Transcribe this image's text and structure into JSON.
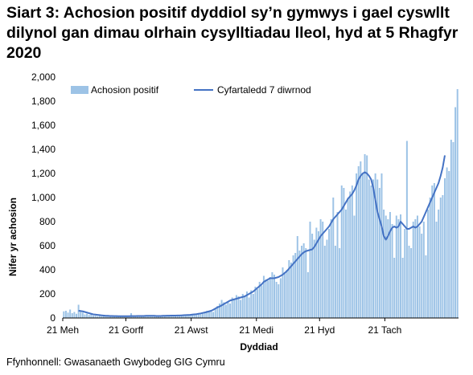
{
  "title": "Siart 3: Achosion positif dyddiol sy’n gymwys i gael cyswllt dilynol gan dimau olrhain cysylltiadau lleol, hyd at 5 Rhagfyr 2020",
  "source": "Ffynhonnell: Gwasanaeth Gwybodeg GIG Cymru",
  "colors": {
    "bars": "#9dc3e6",
    "line": "#4472c4"
  },
  "chart_data": {
    "type": "bar+line",
    "start_date": "2020-06-21",
    "end_date": "2020-12-05",
    "xlabel": "Dyddiad",
    "ylabel": "Nifer yr achosion",
    "ylim": [
      0,
      2000
    ],
    "yticks": [
      "0",
      "200",
      "400",
      "600",
      "800",
      "1,000",
      "1,200",
      "1,400",
      "1,600",
      "1,800",
      "2,000"
    ],
    "xticks": [
      {
        "date": "2020-06-21",
        "label": "21 Meh"
      },
      {
        "date": "2020-07-21",
        "label": "21 Gorff"
      },
      {
        "date": "2020-08-21",
        "label": "21 Awst"
      },
      {
        "date": "2020-09-21",
        "label": "21 Medi"
      },
      {
        "date": "2020-10-21",
        "label": "21 Hyd"
      },
      {
        "date": "2020-11-21",
        "label": "21 Tach"
      }
    ],
    "legend_position": "top-left",
    "series": [
      {
        "name": "Achosion positif",
        "type": "bar",
        "values": [
          55,
          60,
          45,
          70,
          40,
          50,
          35,
          110,
          60,
          45,
          30,
          35,
          25,
          30,
          20,
          20,
          15,
          25,
          15,
          20,
          15,
          18,
          15,
          20,
          12,
          14,
          10,
          12,
          16,
          10,
          15,
          15,
          40,
          15,
          20,
          18,
          15,
          20,
          15,
          20,
          12,
          15,
          12,
          18,
          14,
          20,
          15,
          18,
          20,
          22,
          18,
          20,
          22,
          15,
          20,
          22,
          18,
          25,
          20,
          28,
          30,
          28,
          35,
          28,
          40,
          38,
          45,
          42,
          60,
          50,
          55,
          50,
          80,
          100,
          120,
          150,
          130,
          110,
          140,
          120,
          170,
          160,
          190,
          180,
          150,
          200,
          180,
          220,
          170,
          230,
          200,
          260,
          240,
          300,
          270,
          350,
          320,
          310,
          340,
          380,
          360,
          300,
          280,
          330,
          420,
          380,
          400,
          480,
          460,
          520,
          540,
          680,
          560,
          600,
          620,
          580,
          380,
          800,
          700,
          650,
          750,
          720,
          820,
          800,
          600,
          650,
          740,
          820,
          1000,
          600,
          880,
          580,
          1100,
          1080,
          900,
          1000,
          1050,
          1100,
          850,
          1200,
          1260,
          1300,
          1200,
          1360,
          1350,
          1150,
          1100,
          1150,
          1200,
          1150,
          1080,
          1200,
          900,
          850,
          820,
          880,
          780,
          500,
          850,
          820,
          860,
          500,
          740,
          1470,
          600,
          580,
          800,
          820,
          850,
          760,
          700,
          800,
          520,
          900,
          1000,
          1100,
          1120,
          800,
          900,
          1000,
          1020,
          1160,
          1250,
          1220,
          1480,
          1460,
          1750,
          1900
        ]
      },
      {
        "name": "Cyfartaledd 7 diwrnod",
        "type": "line",
        "values": [
          null,
          null,
          null,
          null,
          null,
          null,
          null,
          60,
          58,
          55,
          50,
          45,
          40,
          35,
          30,
          28,
          26,
          24,
          22,
          20,
          18,
          18,
          17,
          17,
          16,
          16,
          15,
          15,
          15,
          15,
          15,
          15,
          16,
          16,
          16,
          17,
          17,
          17,
          17,
          18,
          18,
          18,
          18,
          18,
          17,
          17,
          17,
          18,
          18,
          19,
          19,
          20,
          20,
          20,
          21,
          21,
          22,
          23,
          24,
          25,
          26,
          28,
          30,
          32,
          35,
          38,
          42,
          46,
          50,
          55,
          60,
          68,
          78,
          88,
          95,
          105,
          115,
          125,
          135,
          145,
          150,
          155,
          160,
          165,
          170,
          175,
          180,
          190,
          200,
          210,
          220,
          235,
          250,
          265,
          280,
          300,
          310,
          320,
          330,
          330,
          330,
          335,
          340,
          350,
          360,
          375,
          390,
          410,
          430,
          450,
          470,
          490,
          510,
          530,
          545,
          555,
          560,
          565,
          570,
          590,
          620,
          650,
          680,
          700,
          720,
          740,
          760,
          790,
          820,
          840,
          860,
          880,
          900,
          930,
          960,
          990,
          1010,
          1030,
          1060,
          1100,
          1150,
          1180,
          1200,
          1210,
          1200,
          1180,
          1150,
          1080,
          980,
          880,
          820,
          760,
          680,
          650,
          680,
          720,
          750,
          760,
          750,
          760,
          800,
          780,
          760,
          740,
          740,
          750,
          760,
          750,
          760,
          780,
          800,
          840,
          880,
          920,
          960,
          1000,
          1040,
          1080,
          1120,
          1180,
          1250,
          1350
        ]
      }
    ]
  }
}
